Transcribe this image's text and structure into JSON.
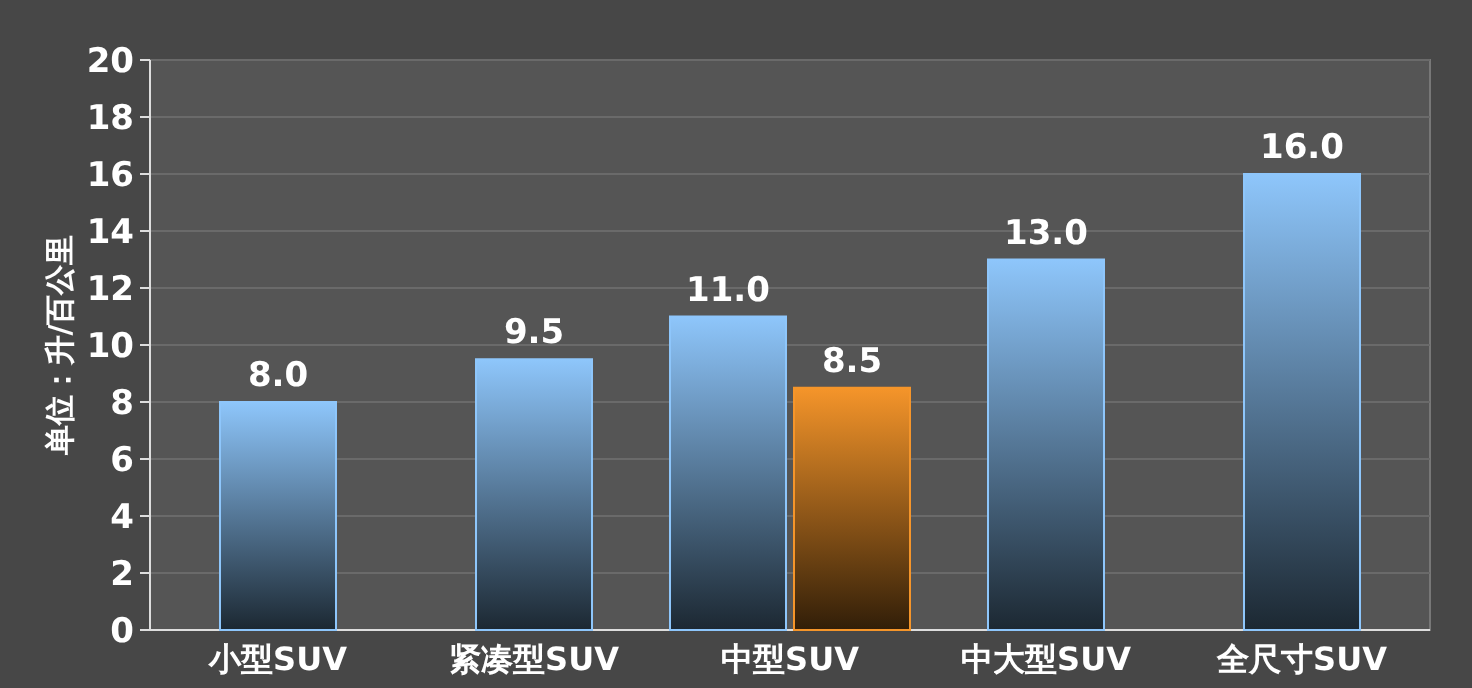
{
  "chart_data": {
    "type": "bar",
    "ylabel": "单位：升/百公里",
    "categories": [
      "小型SUV",
      "紧凑型SUV",
      "中型SUV",
      "中大型SUV",
      "全尺寸SUV"
    ],
    "series": [
      {
        "color": "#8ec6fb",
        "values": [
          8.0,
          9.5,
          11.0,
          13.0,
          16.0
        ],
        "value_labels": [
          "8.0",
          "9.5",
          "11.0",
          "13.0",
          "16.0"
        ]
      },
      {
        "color": "#f5952a",
        "values": [
          null,
          null,
          8.5,
          null,
          null
        ],
        "value_labels": [
          null,
          null,
          "8.5",
          null,
          null
        ]
      }
    ],
    "ylim": [
      0,
      20
    ],
    "yticks": [
      0,
      2,
      4,
      6,
      8,
      10,
      12,
      14,
      16,
      18,
      20
    ],
    "grid": "y"
  }
}
